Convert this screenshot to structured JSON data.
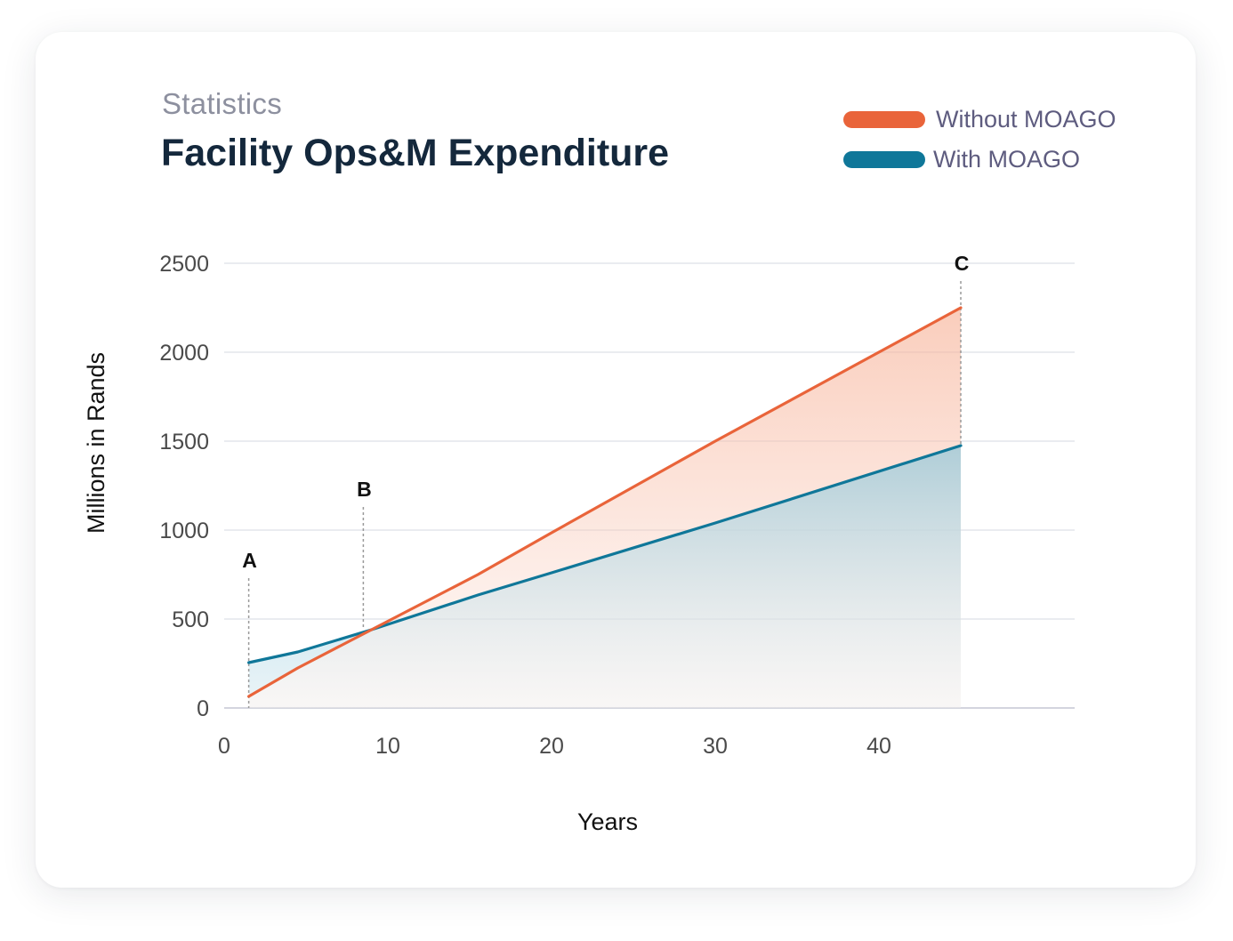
{
  "header": {
    "subtitle": "Statistics",
    "title": "Facility Ops&M Expenditure"
  },
  "legend": [
    {
      "label": "Without MOAGO",
      "color": "#e9643a"
    },
    {
      "label": "With MOAGO",
      "color": "#0f7799"
    }
  ],
  "chart_data": {
    "type": "area",
    "xlabel": "Years",
    "ylabel": "Millions in Rands",
    "xlim": [
      0,
      52
    ],
    "ylim": [
      0,
      2500
    ],
    "x_ticks": [
      0,
      10,
      20,
      30,
      40
    ],
    "y_ticks": [
      0,
      500,
      1000,
      1500,
      2000,
      2500
    ],
    "grid": true,
    "legend_position": "top-right",
    "series": [
      {
        "name": "Without MOAGO",
        "color": "#e9643a",
        "x": [
          1.5,
          4.5,
          9,
          15.5,
          20,
          30,
          45
        ],
        "y": [
          65,
          225,
          440,
          750,
          985,
          1500,
          2250
        ]
      },
      {
        "name": "With MOAGO",
        "color": "#0f7799",
        "x": [
          1.5,
          4.5,
          9,
          15.5,
          20,
          30,
          45
        ],
        "y": [
          255,
          315,
          440,
          635,
          760,
          1040,
          1475
        ]
      }
    ],
    "markers": [
      {
        "label": "A",
        "x": 1.5
      },
      {
        "label": "B",
        "x": 8.5
      },
      {
        "label": "C",
        "x": 45
      }
    ]
  }
}
